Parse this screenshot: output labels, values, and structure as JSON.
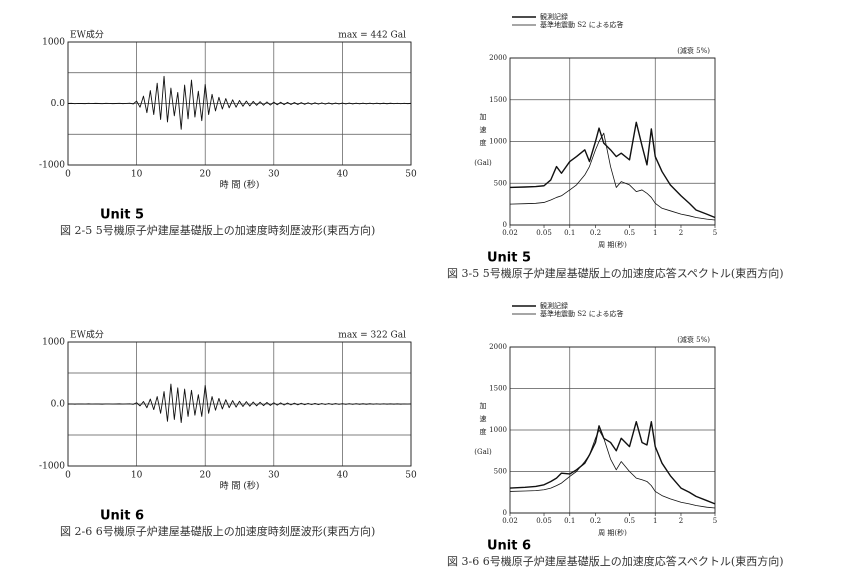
{
  "chart_data": [
    {
      "type": "line",
      "component_label": "EW成分",
      "max_label": "max = 442 Gal",
      "x_label": "時 間 (秒)",
      "annotation": "Unit 5",
      "caption": "図 2-5 5号機原子炉建屋基礎版上の加速度時刻歴波形(東西方向)",
      "xlim": [
        0,
        50
      ],
      "xticks": [
        0,
        10,
        20,
        30,
        40,
        50
      ],
      "ylim": [
        -1000,
        1000
      ],
      "yticks": [
        -1000,
        {
          "value": 0,
          "label": "0.0"
        },
        1000
      ],
      "minor_gridlines": [
        -500,
        500
      ],
      "grid": true,
      "x": [
        0,
        0.5,
        1,
        1.5,
        2,
        2.5,
        3,
        3.5,
        4,
        4.5,
        5,
        5.5,
        6,
        6.5,
        7,
        7.5,
        8,
        8.5,
        9,
        9.5,
        10,
        10.5,
        11,
        11.5,
        12,
        12.5,
        13,
        13.5,
        14,
        14.5,
        15,
        15.5,
        16,
        16.5,
        17,
        17.5,
        18,
        18.5,
        19,
        19.5,
        20,
        20.5,
        21,
        21.5,
        22,
        22.5,
        23,
        23.5,
        24,
        24.5,
        25,
        25.5,
        26,
        26.5,
        27,
        27.5,
        28,
        28.5,
        29,
        29.5,
        30,
        30.5,
        31,
        31.5,
        32,
        32.5,
        33,
        33.5,
        34,
        34.5,
        35,
        35.5,
        36,
        36.5,
        37,
        37.5,
        38,
        38.5,
        39,
        39.5,
        40,
        40.5,
        41,
        41.5,
        42,
        42.5,
        43,
        43.5,
        44,
        44.5,
        45,
        45.5,
        46,
        46.5,
        47,
        47.5,
        48,
        48.5,
        49,
        49.5,
        50
      ],
      "series": [
        {
          "color": "#111111",
          "line_width": 0.9,
          "values": [
            0,
            2,
            -3,
            1,
            0,
            -2,
            3,
            -1,
            2,
            0,
            -3,
            2,
            1,
            -2,
            0,
            3,
            -2,
            1,
            5,
            -8,
            40,
            -60,
            120,
            -150,
            210,
            -180,
            330,
            -260,
            442,
            -300,
            250,
            -200,
            180,
            -420,
            300,
            -250,
            380,
            -220,
            200,
            -280,
            310,
            -180,
            150,
            -120,
            100,
            -90,
            80,
            -70,
            60,
            -60,
            50,
            -45,
            40,
            -40,
            35,
            -30,
            30,
            -28,
            25,
            -25,
            22,
            -20,
            20,
            -18,
            18,
            -16,
            15,
            -15,
            14,
            -13,
            12,
            -12,
            11,
            -10,
            10,
            -10,
            9,
            -9,
            8,
            -8,
            8,
            -7,
            7,
            -7,
            6,
            -6,
            6,
            -5,
            5,
            -5,
            5,
            -4,
            4,
            -4,
            4,
            -3,
            3,
            -3,
            3,
            -2,
            2
          ]
        }
      ]
    },
    {
      "type": "line",
      "xscale": "log",
      "damping_label": "(減衰 5%)",
      "y_label": "加速度",
      "y_unit": "(Gal)",
      "x_label": "周 期(秒)",
      "annotation": "Unit 5",
      "caption": "図 3-5 5号機原子炉建屋基礎版上の加速度応答スペクトル(東西方向)",
      "xlim": [
        0.02,
        5
      ],
      "xticks": [
        0.02,
        0.05,
        0.1,
        0.2,
        0.5,
        1,
        2,
        5
      ],
      "x_gridlines": [
        0.1,
        1
      ],
      "ylim": [
        0,
        2000
      ],
      "yticks": [
        0,
        500,
        1000,
        1500,
        2000
      ],
      "grid": true,
      "x": [
        0.02,
        0.03,
        0.04,
        0.05,
        0.06,
        0.07,
        0.08,
        0.1,
        0.12,
        0.15,
        0.17,
        0.2,
        0.22,
        0.25,
        0.3,
        0.35,
        0.4,
        0.5,
        0.6,
        0.7,
        0.8,
        0.9,
        1,
        1.2,
        1.5,
        2,
        2.5,
        3,
        4,
        5
      ],
      "series": [
        {
          "name": "観測記録",
          "color": "#111111",
          "line_width": 1.4,
          "values": [
            450,
            455,
            460,
            470,
            540,
            700,
            620,
            760,
            820,
            900,
            760,
            1000,
            1160,
            980,
            900,
            820,
            860,
            780,
            1230,
            950,
            720,
            1150,
            820,
            640,
            480,
            350,
            260,
            180,
            130,
            90
          ]
        },
        {
          "name": "基準地震動 S2 による応答",
          "color": "#111111",
          "line_width": 0.8,
          "values": [
            250,
            255,
            260,
            270,
            300,
            330,
            350,
            420,
            480,
            600,
            700,
            900,
            1000,
            1100,
            700,
            450,
            520,
            480,
            400,
            420,
            380,
            330,
            260,
            200,
            170,
            130,
            110,
            90,
            70,
            60
          ]
        }
      ]
    },
    {
      "type": "line",
      "component_label": "EW成分",
      "max_label": "max = 322 Gal",
      "x_label": "時 間 (秒)",
      "annotation": "Unit 6",
      "caption": "図 2-6 6号機原子炉建屋基礎版上の加速度時刻歴波形(東西方向)",
      "xlim": [
        0,
        50
      ],
      "xticks": [
        0,
        10,
        20,
        30,
        40,
        50
      ],
      "ylim": [
        -1000,
        1000
      ],
      "yticks": [
        -1000,
        {
          "value": 0,
          "label": "0.0"
        },
        1000
      ],
      "minor_gridlines": [
        -500,
        500
      ],
      "grid": true,
      "x": [
        0,
        0.5,
        1,
        1.5,
        2,
        2.5,
        3,
        3.5,
        4,
        4.5,
        5,
        5.5,
        6,
        6.5,
        7,
        7.5,
        8,
        8.5,
        9,
        9.5,
        10,
        10.5,
        11,
        11.5,
        12,
        12.5,
        13,
        13.5,
        14,
        14.5,
        15,
        15.5,
        16,
        16.5,
        17,
        17.5,
        18,
        18.5,
        19,
        19.5,
        20,
        20.5,
        21,
        21.5,
        22,
        22.5,
        23,
        23.5,
        24,
        24.5,
        25,
        25.5,
        26,
        26.5,
        27,
        27.5,
        28,
        28.5,
        29,
        29.5,
        30,
        30.5,
        31,
        31.5,
        32,
        32.5,
        33,
        33.5,
        34,
        34.5,
        35,
        35.5,
        36,
        36.5,
        37,
        37.5,
        38,
        38.5,
        39,
        39.5,
        40,
        40.5,
        41,
        41.5,
        42,
        42.5,
        43,
        43.5,
        44,
        44.5,
        45,
        45.5,
        46,
        46.5,
        47,
        47.5,
        48,
        48.5,
        49,
        49.5,
        50
      ],
      "series": [
        {
          "color": "#111111",
          "line_width": 0.9,
          "values": [
            0,
            1,
            -2,
            1,
            0,
            -1,
            2,
            -1,
            1,
            0,
            -2,
            1,
            1,
            -1,
            0,
            2,
            -1,
            1,
            3,
            -5,
            20,
            -30,
            40,
            -60,
            80,
            -90,
            120,
            -150,
            200,
            -280,
            322,
            -250,
            260,
            -300,
            240,
            -200,
            220,
            -180,
            150,
            -200,
            300,
            -150,
            120,
            -100,
            90,
            -80,
            70,
            -60,
            55,
            -50,
            45,
            -40,
            38,
            -35,
            32,
            -30,
            28,
            -26,
            24,
            -22,
            20,
            -18,
            18,
            -16,
            15,
            -14,
            13,
            -13,
            12,
            -11,
            10,
            -10,
            9,
            -9,
            8,
            -8,
            8,
            -7,
            7,
            -6,
            6,
            -6,
            5,
            -5,
            5,
            -4,
            4,
            -4,
            4,
            -3,
            3,
            -3,
            3,
            -2,
            2,
            -2,
            2,
            -2,
            1,
            -1,
            1
          ]
        }
      ]
    },
    {
      "type": "line",
      "xscale": "log",
      "damping_label": "(減衰 5%)",
      "y_label": "加速度",
      "y_unit": "(Gal)",
      "x_label": "周 期(秒)",
      "annotation": "Unit 6",
      "caption": "図 3-6 6号機原子炉建屋基礎版上の加速度応答スペクトル(東西方向)",
      "xlim": [
        0.02,
        5
      ],
      "xticks": [
        0.02,
        0.05,
        0.1,
        0.2,
        0.5,
        1,
        2,
        5
      ],
      "x_gridlines": [
        0.1,
        1
      ],
      "ylim": [
        0,
        2000
      ],
      "yticks": [
        0,
        500,
        1000,
        1500,
        2000
      ],
      "grid": true,
      "x": [
        0.02,
        0.03,
        0.04,
        0.05,
        0.06,
        0.07,
        0.08,
        0.1,
        0.12,
        0.15,
        0.17,
        0.2,
        0.22,
        0.25,
        0.3,
        0.35,
        0.4,
        0.5,
        0.6,
        0.7,
        0.8,
        0.9,
        1,
        1.2,
        1.5,
        2,
        2.5,
        3,
        4,
        5
      ],
      "series": [
        {
          "name": "観測記録",
          "color": "#111111",
          "line_width": 1.4,
          "values": [
            300,
            310,
            320,
            340,
            380,
            420,
            480,
            470,
            520,
            600,
            700,
            850,
            1050,
            900,
            850,
            750,
            900,
            800,
            1100,
            850,
            820,
            1100,
            800,
            600,
            450,
            300,
            250,
            200,
            150,
            110
          ]
        },
        {
          "name": "基準地震動 S2 による応答",
          "color": "#111111",
          "line_width": 0.8,
          "values": [
            260,
            265,
            270,
            280,
            300,
            330,
            360,
            440,
            500,
            620,
            700,
            900,
            1000,
            900,
            650,
            520,
            620,
            500,
            420,
            400,
            380,
            330,
            260,
            210,
            170,
            130,
            110,
            90,
            70,
            60
          ]
        }
      ]
    }
  ]
}
